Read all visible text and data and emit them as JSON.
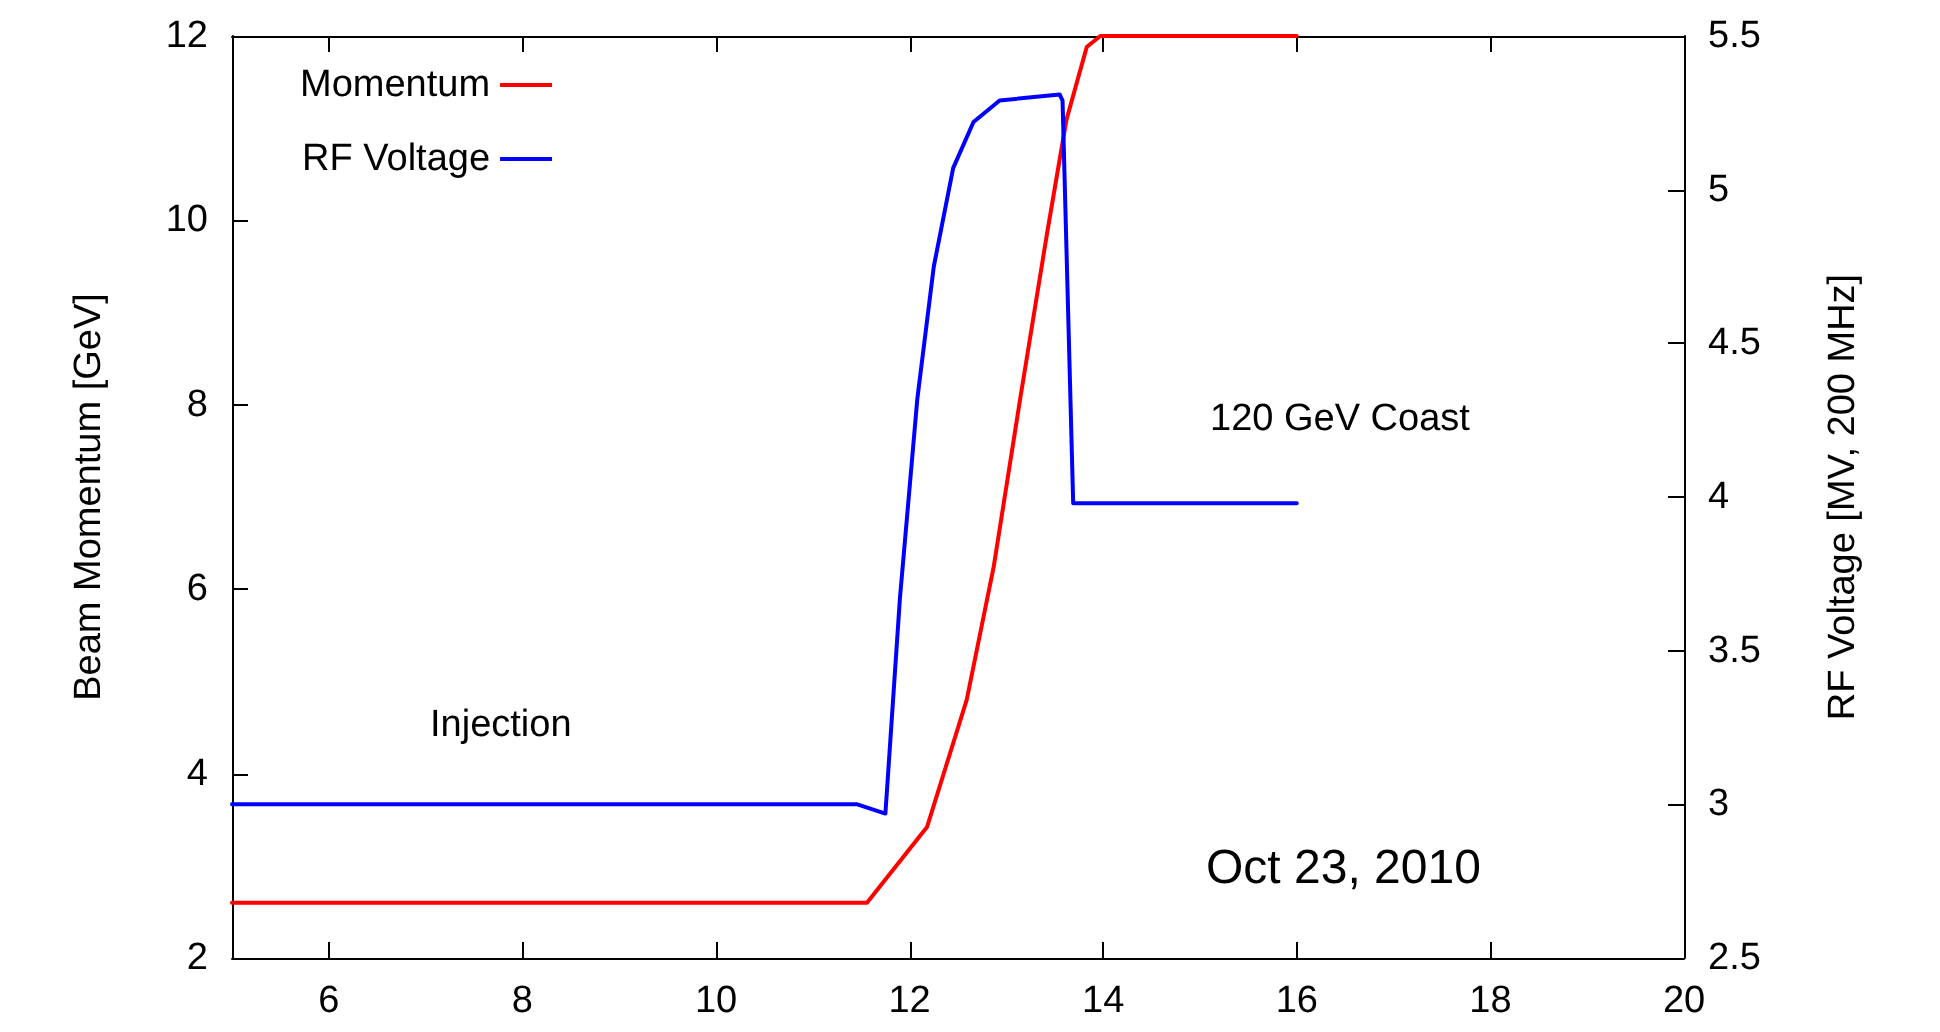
{
  "chart_data": {
    "type": "line",
    "xlabel": null,
    "ylabel": "Beam Momentum [GeV]",
    "y2label": "RF Voltage [MV, 200 MHz]",
    "xlim": [
      5,
      20
    ],
    "xticks": [
      6,
      8,
      10,
      12,
      14,
      16,
      18,
      20
    ],
    "ylim": [
      2,
      12
    ],
    "yticks": [
      2,
      4,
      6,
      8,
      10,
      12
    ],
    "y2lim": [
      2.5,
      5.5
    ],
    "y2ticks": [
      2.5,
      3,
      3.5,
      4,
      4.5,
      5,
      5.5
    ],
    "grid": false,
    "legend": "top left",
    "marker": "none",
    "line_style": "solid",
    "annotations": [
      "Injection",
      "120 GeV Coast",
      "Oct 23, 2010"
    ],
    "series": [
      {
        "name": "Momentum",
        "color": "#ff0000",
        "x": [
          5,
          11.56,
          12.18,
          12.59,
          12.87,
          13.14,
          13.42,
          13.62,
          13.83,
          13.97,
          16
        ],
        "values": [
          2.6,
          2.6,
          3.42,
          4.8,
          6.25,
          8.05,
          9.86,
          11.09,
          11.88,
          12,
          12
        ]
      },
      {
        "name": "RF Voltage",
        "color": "#0000ff",
        "axis": "y2",
        "x": [
          5,
          11.46,
          11.75,
          11.9,
          12.08,
          12.25,
          12.45,
          12.66,
          12.93,
          13.55,
          13.58,
          13.69,
          16
        ],
        "values": [
          3.0,
          3.0,
          2.97,
          3.67,
          4.32,
          4.75,
          5.07,
          5.22,
          5.29,
          5.31,
          5.29,
          3.98,
          3.98
        ]
      }
    ]
  }
}
